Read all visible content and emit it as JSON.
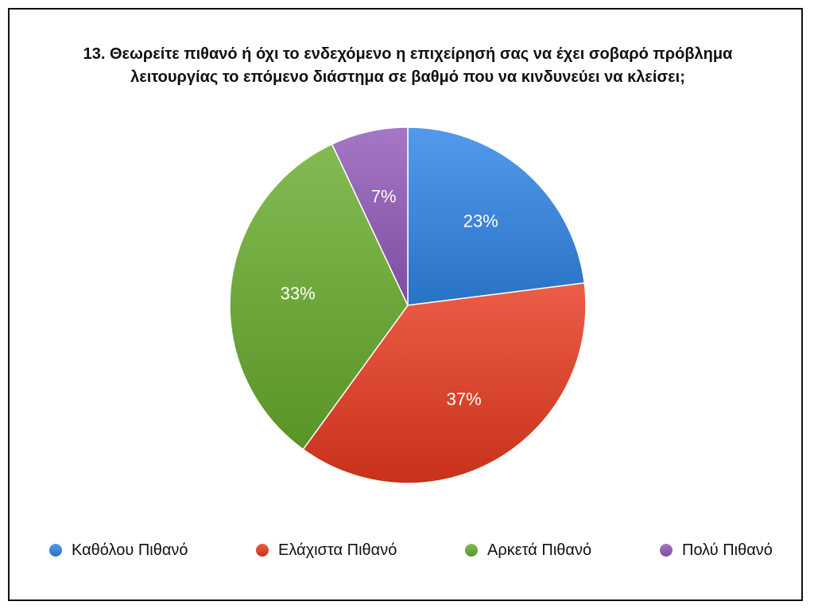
{
  "title_lines": [
    "13. Θεωρείτε πιθανό ή όχι το ενδεχόμενο η επιχείρησή σας να έχει σοβαρό πρόβλημα",
    "λειτουργίας το επόμενο διάστημα σε βαθμό που να κινδυνεύει να κλείσει;"
  ],
  "chart_data": {
    "type": "pie",
    "title": "13. Θεωρείτε πιθανό ή όχι το ενδεχόμενο η επιχείρησή σας να έχει σοβαρό πρόβλημα λειτουργίας το επόμενο διάστημα σε βαθμό που να κινδυνεύει να κλείσει;",
    "start": "12 o'clock",
    "direction": "clockwise",
    "legend_position": "bottom",
    "slices": [
      {
        "label": "Καθόλου Πιθανό",
        "value": 23,
        "display": "23%",
        "color": "#2f84e6"
      },
      {
        "label": "Ελάχιστα Πιθανό",
        "value": 37,
        "display": "37%",
        "color": "#e8391e"
      },
      {
        "label": "Αρκετά Πιθανό",
        "value": 33,
        "display": "33%",
        "color": "#68ac2c"
      },
      {
        "label": "Πολύ Πιθανό",
        "value": 7,
        "display": "7%",
        "color": "#9159b8"
      }
    ]
  }
}
